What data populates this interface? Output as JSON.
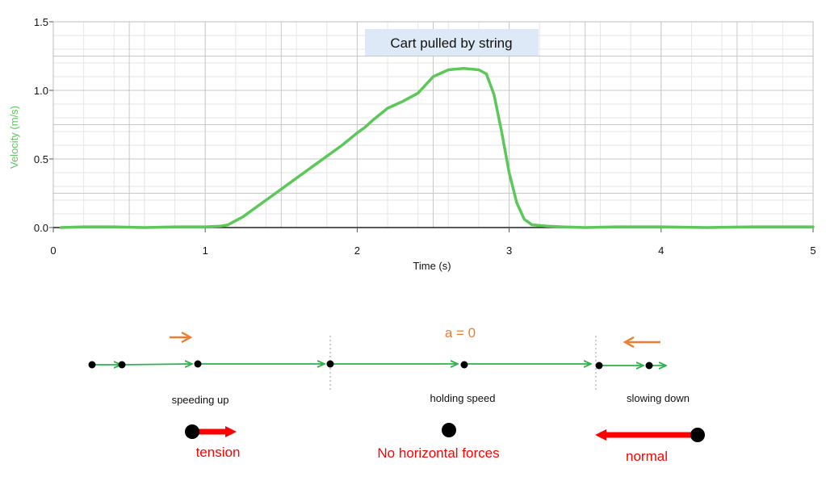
{
  "chart_data": {
    "type": "line",
    "title": "Cart pulled by string",
    "xlabel": "Time (s)",
    "ylabel": "Velocity (m/s)",
    "xlim": [
      0,
      5
    ],
    "ylim": [
      0,
      1.5
    ],
    "xticks": [
      0,
      1,
      2,
      3,
      4,
      5
    ],
    "yticks": [
      0.0,
      0.5,
      1.0,
      1.5
    ],
    "xtick_labels": [
      "0",
      "1",
      "2",
      "3",
      "4",
      "5"
    ],
    "ytick_labels": [
      "0.0",
      "0.5",
      "1.0",
      "1.5"
    ],
    "grid": true,
    "series_color": "#5cc85a",
    "series": [
      {
        "x": [
          0.05,
          0.2,
          0.4,
          0.6,
          0.8,
          1.0,
          1.1,
          1.15,
          1.2,
          1.25,
          1.3,
          1.4,
          1.5,
          1.6,
          1.7,
          1.8,
          1.9,
          2.0,
          2.05,
          2.1,
          2.2,
          2.3,
          2.4,
          2.45,
          2.5,
          2.6,
          2.7,
          2.8,
          2.85,
          2.9,
          2.95,
          3.0,
          3.05,
          3.1,
          3.15,
          3.25,
          3.35,
          3.5,
          3.7,
          4.0,
          4.3,
          4.6,
          5.0
        ],
        "y": [
          0.0,
          0.005,
          0.005,
          0.0,
          0.005,
          0.005,
          0.01,
          0.02,
          0.05,
          0.08,
          0.12,
          0.2,
          0.28,
          0.36,
          0.44,
          0.52,
          0.6,
          0.69,
          0.73,
          0.78,
          0.87,
          0.92,
          0.98,
          1.04,
          1.1,
          1.15,
          1.16,
          1.15,
          1.12,
          0.97,
          0.7,
          0.4,
          0.18,
          0.06,
          0.02,
          0.01,
          0.005,
          0.0,
          0.005,
          0.005,
          0.0,
          0.005,
          0.005
        ]
      }
    ]
  },
  "diagram": {
    "accel_label": "a = 0",
    "phases": [
      {
        "label": "speeding up",
        "force_label": "tension"
      },
      {
        "label": "holding speed",
        "force_label": "No horizontal forces"
      },
      {
        "label": "slowing down",
        "force_label": "normal"
      }
    ],
    "motion_color": "#2db34a",
    "accel_color": "#ed7d31",
    "force_color": "#ff0000"
  }
}
